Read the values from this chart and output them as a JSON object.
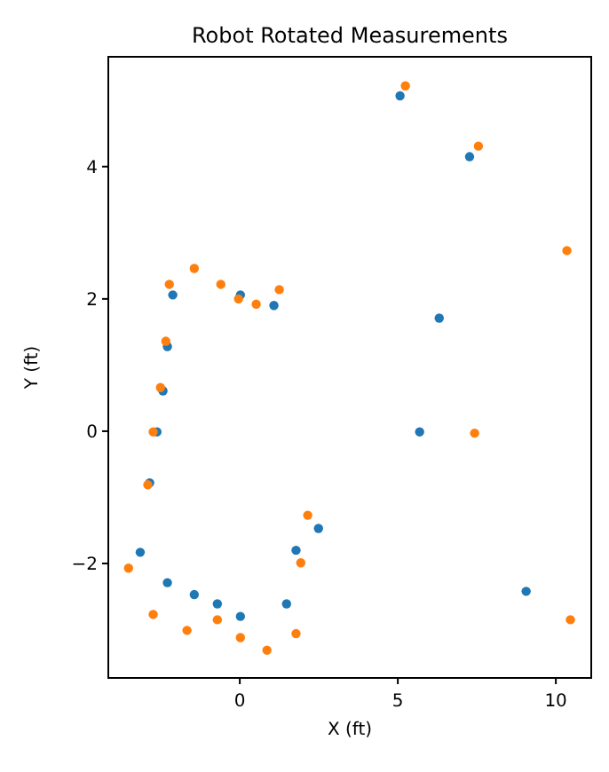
{
  "chart_data": {
    "type": "scatter",
    "title": "Robot Rotated Measurements",
    "xlabel": "X (ft)",
    "ylabel": "Y (ft)",
    "xlim": [
      -4.16,
      11.12
    ],
    "ylim": [
      -3.73,
      5.66
    ],
    "xticks": [
      0,
      5,
      10
    ],
    "yticks": [
      -2,
      0,
      2,
      4
    ],
    "grid": false,
    "marker": "circle",
    "series": [
      {
        "color": "#1f77b4",
        "x": [
          5.07,
          7.27,
          -2.12,
          0.02,
          1.08,
          6.31,
          -2.29,
          -2.43,
          -2.62,
          -2.85,
          -3.15,
          -2.29,
          -1.44,
          -0.71,
          0.02,
          1.48,
          1.78,
          2.49,
          5.69,
          9.06
        ],
        "values": [
          5.07,
          4.15,
          2.06,
          2.06,
          1.9,
          1.71,
          1.28,
          0.61,
          -0.01,
          -0.78,
          -1.83,
          -2.29,
          -2.47,
          -2.61,
          -2.8,
          -2.61,
          -1.8,
          -1.47,
          -0.01,
          -2.42
        ]
      },
      {
        "color": "#ff7f0e",
        "x": [
          5.24,
          7.55,
          10.35,
          -1.44,
          -2.23,
          -0.6,
          -0.04,
          0.52,
          1.25,
          -2.34,
          -2.51,
          -2.74,
          -2.91,
          -3.52,
          -2.74,
          -1.67,
          -0.71,
          0.02,
          0.86,
          1.78,
          1.93,
          2.15,
          7.43,
          10.46
        ],
        "values": [
          5.22,
          4.31,
          2.73,
          2.46,
          2.22,
          2.22,
          2.0,
          1.92,
          2.14,
          1.36,
          0.66,
          -0.01,
          -0.81,
          -2.07,
          -2.77,
          -3.01,
          -2.85,
          -3.12,
          -3.31,
          -3.06,
          -1.99,
          -1.27,
          -0.03,
          -2.85
        ]
      }
    ]
  }
}
